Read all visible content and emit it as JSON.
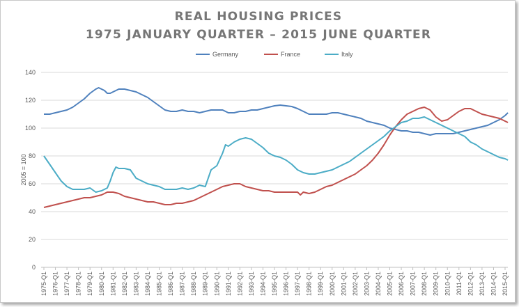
{
  "chart_data": {
    "type": "line",
    "title_line1": "REAL HOUSING PRICES",
    "title_line2": "1975 JANUARY QUARTER – 2015 JUNE QUARTER",
    "xlabel": "",
    "ylabel": "2005 = 100",
    "ylim": [
      0,
      140
    ],
    "yticks": [
      0,
      20,
      40,
      60,
      80,
      100,
      120,
      140
    ],
    "legend_position": "top-center",
    "grid": true,
    "x_start_year": 1975,
    "x_end_year": 2015,
    "x_tick_suffix": "-Q1",
    "categories_years": [
      1975,
      1976,
      1977,
      1978,
      1979,
      1980,
      1981,
      1982,
      1983,
      1984,
      1985,
      1986,
      1987,
      1988,
      1989,
      1990,
      1991,
      1992,
      1993,
      1994,
      1995,
      1996,
      1997,
      1998,
      1999,
      2000,
      2001,
      2002,
      2003,
      2004,
      2005,
      2006,
      2007,
      2008,
      2009,
      2010,
      2011,
      2012,
      2013,
      2014,
      2015
    ],
    "series": [
      {
        "name": "Germany",
        "color": "#4f81bd",
        "points": [
          [
            1975.0,
            110
          ],
          [
            1975.5,
            110
          ],
          [
            1976.0,
            111
          ],
          [
            1976.5,
            112
          ],
          [
            1977.0,
            113
          ],
          [
            1977.5,
            115
          ],
          [
            1978.0,
            118
          ],
          [
            1978.5,
            121
          ],
          [
            1979.0,
            125
          ],
          [
            1979.5,
            128
          ],
          [
            1979.75,
            129
          ],
          [
            1980.0,
            128
          ],
          [
            1980.25,
            127
          ],
          [
            1980.5,
            125
          ],
          [
            1980.75,
            125
          ],
          [
            1981.0,
            126
          ],
          [
            1981.5,
            128
          ],
          [
            1982.0,
            128
          ],
          [
            1982.5,
            127
          ],
          [
            1983.0,
            126
          ],
          [
            1983.5,
            124
          ],
          [
            1984.0,
            122
          ],
          [
            1984.5,
            119
          ],
          [
            1985.0,
            116
          ],
          [
            1985.5,
            113
          ],
          [
            1986.0,
            112
          ],
          [
            1986.5,
            112
          ],
          [
            1987.0,
            113
          ],
          [
            1987.5,
            112
          ],
          [
            1988.0,
            112
          ],
          [
            1988.5,
            111
          ],
          [
            1989.0,
            112
          ],
          [
            1989.5,
            113
          ],
          [
            1990.0,
            113
          ],
          [
            1990.5,
            113
          ],
          [
            1991.0,
            111
          ],
          [
            1991.5,
            111
          ],
          [
            1992.0,
            112
          ],
          [
            1992.5,
            112
          ],
          [
            1993.0,
            113
          ],
          [
            1993.5,
            113
          ],
          [
            1994.0,
            114
          ],
          [
            1994.5,
            115
          ],
          [
            1995.0,
            116
          ],
          [
            1995.5,
            116.5
          ],
          [
            1996.0,
            116
          ],
          [
            1996.5,
            115.5
          ],
          [
            1997.0,
            114
          ],
          [
            1997.5,
            112
          ],
          [
            1998.0,
            110
          ],
          [
            1998.5,
            110
          ],
          [
            1999.0,
            110
          ],
          [
            1999.5,
            110
          ],
          [
            2000.0,
            111
          ],
          [
            2000.5,
            111
          ],
          [
            2001.0,
            110
          ],
          [
            2001.5,
            109
          ],
          [
            2002.0,
            108
          ],
          [
            2002.5,
            107
          ],
          [
            2003.0,
            105
          ],
          [
            2003.5,
            104
          ],
          [
            2004.0,
            103
          ],
          [
            2004.5,
            102
          ],
          [
            2005.0,
            100
          ],
          [
            2005.5,
            99
          ],
          [
            2006.0,
            98
          ],
          [
            2006.5,
            98
          ],
          [
            2007.0,
            97
          ],
          [
            2007.5,
            97
          ],
          [
            2008.0,
            96
          ],
          [
            2008.5,
            95
          ],
          [
            2009.0,
            96
          ],
          [
            2009.5,
            96
          ],
          [
            2010.0,
            96
          ],
          [
            2010.5,
            96
          ],
          [
            2011.0,
            97
          ],
          [
            2011.5,
            98
          ],
          [
            2012.0,
            99
          ],
          [
            2012.5,
            100
          ],
          [
            2013.0,
            101
          ],
          [
            2013.5,
            102
          ],
          [
            2014.0,
            104
          ],
          [
            2014.5,
            106
          ],
          [
            2015.0,
            109
          ],
          [
            2015.25,
            111
          ]
        ]
      },
      {
        "name": "France",
        "color": "#c0504d",
        "points": [
          [
            1975.0,
            43
          ],
          [
            1975.5,
            44
          ],
          [
            1976.0,
            45
          ],
          [
            1976.5,
            46
          ],
          [
            1977.0,
            47
          ],
          [
            1977.5,
            48
          ],
          [
            1978.0,
            49
          ],
          [
            1978.5,
            50
          ],
          [
            1979.0,
            50
          ],
          [
            1979.5,
            51
          ],
          [
            1980.0,
            52
          ],
          [
            1980.5,
            54
          ],
          [
            1981.0,
            54
          ],
          [
            1981.5,
            53
          ],
          [
            1982.0,
            51
          ],
          [
            1982.5,
            50
          ],
          [
            1983.0,
            49
          ],
          [
            1983.5,
            48
          ],
          [
            1984.0,
            47
          ],
          [
            1984.5,
            47
          ],
          [
            1985.0,
            46
          ],
          [
            1985.5,
            45
          ],
          [
            1986.0,
            45
          ],
          [
            1986.5,
            46
          ],
          [
            1987.0,
            46
          ],
          [
            1987.5,
            47
          ],
          [
            1988.0,
            48
          ],
          [
            1988.5,
            50
          ],
          [
            1989.0,
            52
          ],
          [
            1989.5,
            54
          ],
          [
            1990.0,
            56
          ],
          [
            1990.5,
            58
          ],
          [
            1991.0,
            59
          ],
          [
            1991.5,
            60
          ],
          [
            1992.0,
            60
          ],
          [
            1992.5,
            58
          ],
          [
            1993.0,
            57
          ],
          [
            1993.5,
            56
          ],
          [
            1994.0,
            55
          ],
          [
            1994.5,
            55
          ],
          [
            1995.0,
            54
          ],
          [
            1995.5,
            54
          ],
          [
            1996.0,
            54
          ],
          [
            1996.5,
            54
          ],
          [
            1997.0,
            54
          ],
          [
            1997.25,
            52
          ],
          [
            1997.5,
            54
          ],
          [
            1998.0,
            53
          ],
          [
            1998.5,
            54
          ],
          [
            1999.0,
            56
          ],
          [
            1999.5,
            58
          ],
          [
            2000.0,
            59
          ],
          [
            2000.5,
            61
          ],
          [
            2001.0,
            63
          ],
          [
            2001.5,
            65
          ],
          [
            2002.0,
            67
          ],
          [
            2002.5,
            70
          ],
          [
            2003.0,
            73
          ],
          [
            2003.5,
            77
          ],
          [
            2004.0,
            82
          ],
          [
            2004.5,
            88
          ],
          [
            2005.0,
            95
          ],
          [
            2005.5,
            101
          ],
          [
            2006.0,
            106
          ],
          [
            2006.5,
            110
          ],
          [
            2007.0,
            112
          ],
          [
            2007.5,
            114
          ],
          [
            2008.0,
            115
          ],
          [
            2008.5,
            113
          ],
          [
            2009.0,
            108
          ],
          [
            2009.5,
            105
          ],
          [
            2010.0,
            106
          ],
          [
            2010.5,
            109
          ],
          [
            2011.0,
            112
          ],
          [
            2011.5,
            114
          ],
          [
            2012.0,
            114
          ],
          [
            2012.5,
            112
          ],
          [
            2013.0,
            110
          ],
          [
            2013.5,
            109
          ],
          [
            2014.0,
            108
          ],
          [
            2014.5,
            107
          ],
          [
            2015.0,
            105
          ],
          [
            2015.25,
            104
          ]
        ]
      },
      {
        "name": "Italy",
        "color": "#4bacc6",
        "points": [
          [
            1975.0,
            80
          ],
          [
            1975.5,
            74
          ],
          [
            1976.0,
            68
          ],
          [
            1976.5,
            62
          ],
          [
            1977.0,
            58
          ],
          [
            1977.5,
            56
          ],
          [
            1978.0,
            56
          ],
          [
            1978.5,
            56
          ],
          [
            1979.0,
            57
          ],
          [
            1979.5,
            54
          ],
          [
            1980.0,
            55
          ],
          [
            1980.5,
            57
          ],
          [
            1980.75,
            62
          ],
          [
            1981.0,
            68
          ],
          [
            1981.25,
            72
          ],
          [
            1981.5,
            71
          ],
          [
            1982.0,
            71
          ],
          [
            1982.5,
            70
          ],
          [
            1983.0,
            64
          ],
          [
            1983.5,
            62
          ],
          [
            1984.0,
            60
          ],
          [
            1984.5,
            59
          ],
          [
            1985.0,
            58
          ],
          [
            1985.5,
            56
          ],
          [
            1986.0,
            56
          ],
          [
            1986.5,
            56
          ],
          [
            1987.0,
            57
          ],
          [
            1987.5,
            56
          ],
          [
            1988.0,
            57
          ],
          [
            1988.5,
            59
          ],
          [
            1989.0,
            58
          ],
          [
            1989.5,
            70
          ],
          [
            1990.0,
            73
          ],
          [
            1990.5,
            82
          ],
          [
            1990.75,
            88
          ],
          [
            1991.0,
            87
          ],
          [
            1991.5,
            90
          ],
          [
            1992.0,
            92
          ],
          [
            1992.5,
            93
          ],
          [
            1993.0,
            92
          ],
          [
            1993.5,
            89
          ],
          [
            1994.0,
            86
          ],
          [
            1994.5,
            82
          ],
          [
            1995.0,
            80
          ],
          [
            1995.5,
            79
          ],
          [
            1996.0,
            77
          ],
          [
            1996.5,
            74
          ],
          [
            1997.0,
            70
          ],
          [
            1997.5,
            68
          ],
          [
            1998.0,
            67
          ],
          [
            1998.5,
            67
          ],
          [
            1999.0,
            68
          ],
          [
            1999.5,
            69
          ],
          [
            2000.0,
            70
          ],
          [
            2000.5,
            72
          ],
          [
            2001.0,
            74
          ],
          [
            2001.5,
            76
          ],
          [
            2002.0,
            79
          ],
          [
            2002.5,
            82
          ],
          [
            2003.0,
            85
          ],
          [
            2003.5,
            88
          ],
          [
            2004.0,
            91
          ],
          [
            2004.5,
            94
          ],
          [
            2005.0,
            98
          ],
          [
            2005.5,
            101
          ],
          [
            2006.0,
            104
          ],
          [
            2006.5,
            105
          ],
          [
            2007.0,
            107
          ],
          [
            2007.5,
            107
          ],
          [
            2008.0,
            108
          ],
          [
            2008.5,
            106
          ],
          [
            2009.0,
            104
          ],
          [
            2009.5,
            102
          ],
          [
            2010.0,
            100
          ],
          [
            2010.5,
            98
          ],
          [
            2011.0,
            96
          ],
          [
            2011.5,
            94
          ],
          [
            2012.0,
            90
          ],
          [
            2012.5,
            88
          ],
          [
            2013.0,
            85
          ],
          [
            2013.5,
            83
          ],
          [
            2014.0,
            81
          ],
          [
            2014.5,
            79
          ],
          [
            2015.0,
            78
          ],
          [
            2015.25,
            77
          ]
        ]
      }
    ]
  }
}
